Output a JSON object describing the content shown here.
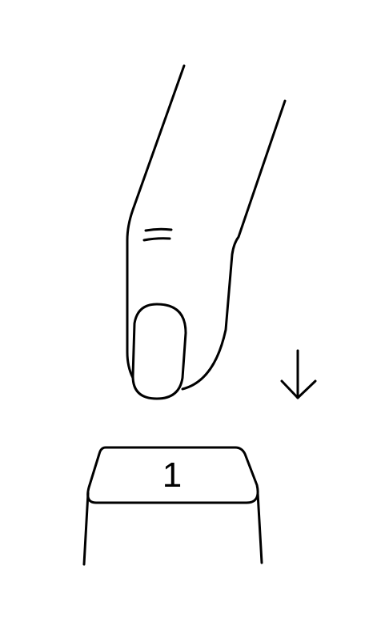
{
  "key": {
    "label": "1"
  },
  "icons": {
    "finger": "finger-icon",
    "press_direction": "arrow-down-icon",
    "keycap": "keycap-icon"
  },
  "colors": {
    "stroke": "#000000",
    "background": "#ffffff"
  }
}
